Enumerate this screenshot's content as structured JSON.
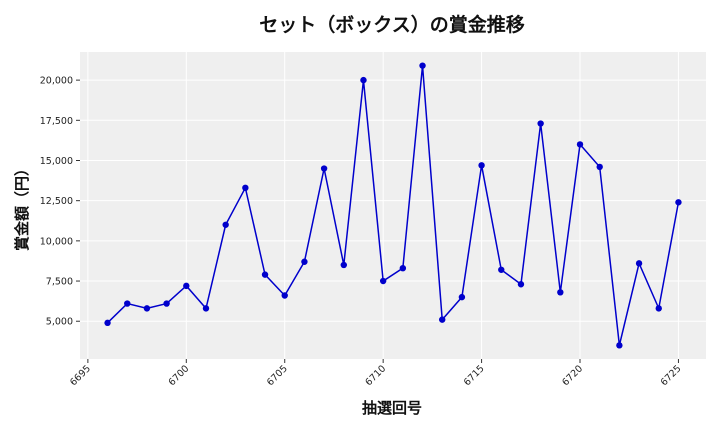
{
  "chart_data": {
    "type": "line",
    "title": "セット（ボックス）の賞金推移",
    "xlabel": "抽選回号",
    "ylabel": "賞金額（円）",
    "x": [
      6696,
      6697,
      6698,
      6699,
      6700,
      6701,
      6702,
      6703,
      6704,
      6705,
      6706,
      6707,
      6708,
      6709,
      6710,
      6711,
      6712,
      6713,
      6714,
      6715,
      6716,
      6717,
      6718,
      6719,
      6720,
      6721,
      6722,
      6723,
      6724,
      6725
    ],
    "series": [
      {
        "values": [
          4900,
          6100,
          5800,
          6100,
          7200,
          5800,
          11000,
          13300,
          7900,
          6600,
          8700,
          14500,
          8500,
          20000,
          7500,
          8300,
          20900,
          5100,
          6500,
          14700,
          8200,
          7300,
          17300,
          6800,
          16000,
          14600,
          3500,
          8600,
          5800,
          12400
        ],
        "color": "#0000cc",
        "marker": "circle"
      }
    ],
    "xlim": [
      6694.6,
      6726.4
    ],
    "ylim": [
      2650,
      21750
    ],
    "xticks": [
      6695,
      6700,
      6705,
      6710,
      6715,
      6720,
      6725
    ],
    "xtick_labels": [
      "6695",
      "6700",
      "6705",
      "6710",
      "6715",
      "6720",
      "6725"
    ],
    "yticks": [
      5000,
      7500,
      10000,
      12500,
      15000,
      17500,
      20000
    ],
    "ytick_labels": [
      "5,000",
      "7,500",
      "10,000",
      "12,500",
      "15,000",
      "17,500",
      "20,000"
    ],
    "grid": true,
    "background": "#efefef",
    "legend": "none"
  }
}
